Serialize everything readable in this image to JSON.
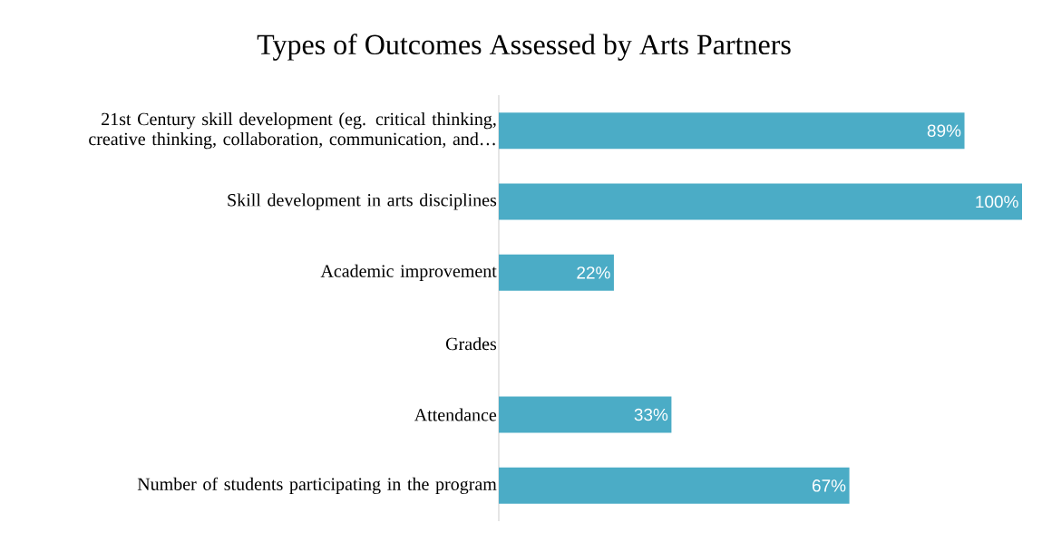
{
  "chart_data": {
    "type": "bar",
    "orientation": "horizontal",
    "title": "Types of Outcomes Assessed by Arts Partners",
    "categories": [
      "21st Century skill development (eg. critical thinking, creative thinking, collaboration, communication, and…",
      "Skill development in arts disciplines",
      "Academic improvement",
      "Grades",
      "Attendance",
      "Number of students participating in the program"
    ],
    "values": [
      89,
      100,
      22,
      0,
      33,
      67
    ],
    "value_labels": [
      "89%",
      "100%",
      "22%",
      null,
      "33%",
      "67%"
    ],
    "color": "#4bacc6"
  }
}
